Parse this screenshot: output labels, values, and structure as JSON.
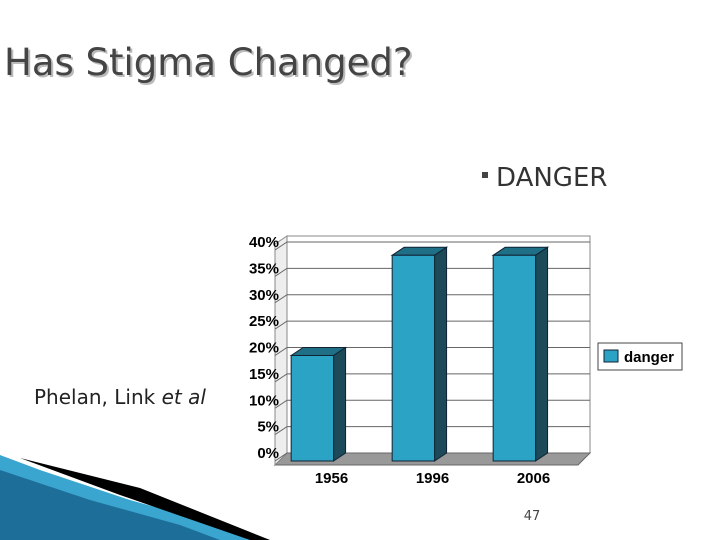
{
  "slide": {
    "title": "Has Stigma Changed?",
    "bullet": "DANGER",
    "citation": {
      "authors": "Phelan, Link",
      "italic": "et al"
    },
    "page_number": "47"
  },
  "chart_data": {
    "type": "bar3d",
    "categories": [
      "1956",
      "1996",
      "2006"
    ],
    "series": [
      {
        "name": "danger",
        "color": "#2aa3c4",
        "values": [
          20,
          39,
          39
        ]
      }
    ],
    "ylim": [
      0,
      40
    ],
    "yticks": [
      {
        "value": 0,
        "label": "0%"
      },
      {
        "value": 5,
        "label": "5%"
      },
      {
        "value": 10,
        "label": "10%"
      },
      {
        "value": 15,
        "label": "15%"
      },
      {
        "value": 20,
        "label": "20%"
      },
      {
        "value": 25,
        "label": "25%"
      },
      {
        "value": 30,
        "label": "30%"
      },
      {
        "value": 35,
        "label": "35%"
      },
      {
        "value": 40,
        "label": "40%"
      }
    ],
    "grid": true,
    "legend": "right"
  }
}
